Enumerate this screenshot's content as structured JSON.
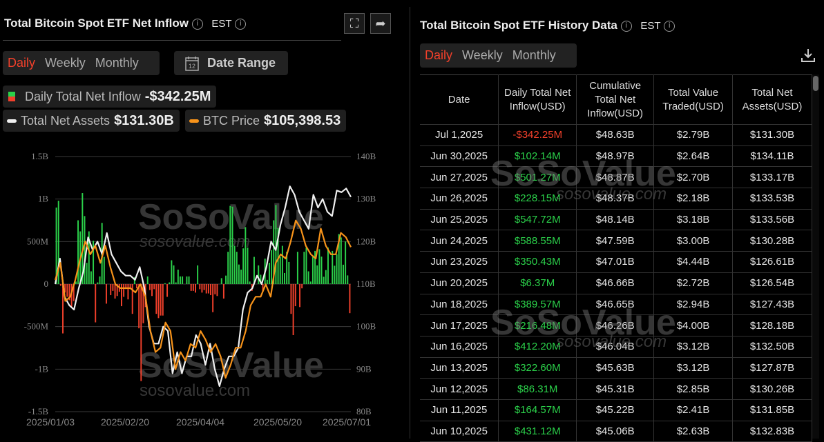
{
  "left": {
    "title": "Total Bitcoin Spot ETF Net Inflow",
    "timezone": "EST",
    "tabs": [
      "Daily",
      "Weekly",
      "Monthly"
    ],
    "active_tab": "Daily",
    "date_range_label": "Date Range",
    "calendar_day": "12",
    "legend": {
      "inflow_label": "Daily Total Net Inflow",
      "inflow_value": "-$342.25M",
      "assets_label": "Total Net Assets",
      "assets_value": "$131.30B",
      "btc_label": "BTC Price",
      "btc_value": "$105,398.53"
    }
  },
  "watermark": {
    "brand": "SoSoValue",
    "url": "sosovalue.com"
  },
  "colors": {
    "positive": "#2bd14a",
    "negative": "#f2402b",
    "assets_line": "#f0f0f0",
    "btc_line": "#f7931a",
    "accent": "#f2402b"
  },
  "chart_data": {
    "type": "bar+line",
    "x_ticks": [
      "2025/01/03",
      "2025/02/20",
      "2025/04/04",
      "2025/05/20",
      "2025/07/01"
    ],
    "y_left_ticks": [
      "1.5B",
      "1B",
      "500M",
      "0",
      "-500M",
      "-1B",
      "-1.5B"
    ],
    "y_right_ticks": [
      "140B",
      "130B",
      "120B",
      "110B",
      "100B",
      "90B",
      "80B"
    ],
    "y_left_range_usd_millions": [
      -1500,
      1500
    ],
    "y_right_range_usd_billions": [
      80,
      140
    ],
    "grid": true,
    "series": [
      {
        "name": "Daily Total Net Inflow",
        "type": "bar",
        "unit": "USD millions",
        "values": [
          900,
          980,
          -20,
          -580,
          -100,
          -150,
          -190,
          -280,
          -200,
          30,
          750,
          620,
          1070,
          800,
          250,
          620,
          150,
          510,
          -450,
          20,
          90,
          720,
          320,
          -230,
          0,
          -130,
          -80,
          -170,
          -140,
          -90,
          -260,
          -150,
          -60,
          -180,
          -60,
          -350,
          80,
          -50,
          -520,
          -1140,
          -460,
          -270,
          90,
          -70,
          -140,
          -60,
          -350,
          -400,
          -370,
          -370,
          10,
          -150,
          20,
          280,
          220,
          20,
          170,
          90,
          90,
          0,
          90,
          90,
          -80,
          -80,
          -100,
          220,
          -60,
          -100,
          -70,
          -110,
          -110,
          -130,
          -330,
          -120,
          -140,
          0,
          70,
          -170,
          100,
          380,
          920,
          910,
          450,
          380,
          230,
          170,
          420,
          670,
          430,
          30,
          -80,
          320,
          0,
          220,
          110,
          -90,
          300,
          50,
          250,
          400,
          750,
          930,
          660,
          320,
          450,
          130,
          380,
          260,
          -350,
          -600,
          -260,
          380,
          -270,
          -50,
          380,
          430,
          150,
          30,
          320,
          390,
          220,
          410,
          323,
          86,
          165,
          431,
          6,
          390,
          216,
          350,
          589,
          548,
          228,
          501,
          102,
          -342
        ]
      },
      {
        "name": "Total Net Assets",
        "type": "line",
        "unit": "USD billions",
        "values": [
          110,
          116,
          107,
          105,
          104,
          109,
          113,
          121,
          118,
          120,
          117,
          122,
          117,
          115,
          113,
          112,
          112,
          111,
          114,
          109,
          100,
          96,
          96,
          100,
          99,
          89,
          94,
          89,
          93,
          93,
          98,
          96,
          91,
          96,
          90,
          86,
          90,
          93,
          93,
          95,
          104,
          108,
          109,
          112,
          110,
          114,
          120,
          118,
          124,
          128,
          133,
          131,
          127,
          125,
          123,
          131,
          128,
          130,
          127,
          126,
          132,
          131.6,
          132.5,
          130.5
        ]
      },
      {
        "name": "BTC Price",
        "type": "line",
        "unit": "USD thousands",
        "values": [
          98.5,
          102.1,
          94.1,
          95.0,
          98.5,
          103.0,
          106.6,
          103.9,
          105.7,
          102.1,
          105.7,
          101.2,
          97.6,
          96.8,
          96.8,
          96.8,
          95.9,
          97.6,
          95.0,
          87.8,
          83.4,
          84.3,
          89.6,
          87.8,
          79.8,
          83.4,
          81.6,
          85.1,
          84.3,
          87.8,
          86.0,
          83.4,
          85.1,
          82.5,
          78.0,
          80.7,
          84.3,
          84.3,
          87.8,
          93.2,
          95.0,
          95.0,
          97.6,
          95.0,
          102.1,
          103.9,
          103.0,
          106.6,
          111.0,
          109.3,
          105.7,
          103.9,
          103.0,
          109.3,
          105.7,
          103.9,
          103.9,
          108.4,
          107.5,
          105.4
        ]
      }
    ]
  },
  "right": {
    "title": "Total Bitcoin Spot ETF History Data",
    "timezone": "EST",
    "tabs": [
      "Daily",
      "Weekly",
      "Monthly"
    ],
    "active_tab": "Daily",
    "columns": [
      "Date",
      "Daily Total Net Inflow(USD)",
      "Cumulative Total Net Inflow(USD)",
      "Total Value Traded(USD)",
      "Total Net Assets(USD)"
    ],
    "rows": [
      [
        "Jul 1,2025",
        "-$342.25M",
        "$48.63B",
        "$2.79B",
        "$131.30B"
      ],
      [
        "Jun 30,2025",
        "$102.14M",
        "$48.97B",
        "$2.64B",
        "$134.11B"
      ],
      [
        "Jun 27,2025",
        "$501.27M",
        "$48.87B",
        "$2.70B",
        "$133.17B"
      ],
      [
        "Jun 26,2025",
        "$228.15M",
        "$48.37B",
        "$2.18B",
        "$133.53B"
      ],
      [
        "Jun 25,2025",
        "$547.72M",
        "$48.14B",
        "$3.18B",
        "$133.56B"
      ],
      [
        "Jun 24,2025",
        "$588.55M",
        "$47.59B",
        "$3.00B",
        "$130.28B"
      ],
      [
        "Jun 23,2025",
        "$350.43M",
        "$47.01B",
        "$4.44B",
        "$126.61B"
      ],
      [
        "Jun 20,2025",
        "$6.37M",
        "$46.66B",
        "$2.72B",
        "$126.54B"
      ],
      [
        "Jun 18,2025",
        "$389.57M",
        "$46.65B",
        "$2.94B",
        "$127.43B"
      ],
      [
        "Jun 17,2025",
        "$216.48M",
        "$46.26B",
        "$4.00B",
        "$128.18B"
      ],
      [
        "Jun 16,2025",
        "$412.20M",
        "$46.04B",
        "$3.12B",
        "$132.50B"
      ],
      [
        "Jun 13,2025",
        "$322.60M",
        "$45.63B",
        "$3.12B",
        "$127.87B"
      ],
      [
        "Jun 12,2025",
        "$86.31M",
        "$45.31B",
        "$2.85B",
        "$130.26B"
      ],
      [
        "Jun 11,2025",
        "$164.57M",
        "$45.22B",
        "$2.41B",
        "$131.85B"
      ],
      [
        "Jun 10,2025",
        "$431.12M",
        "$45.06B",
        "$2.63B",
        "$132.83B"
      ]
    ]
  }
}
